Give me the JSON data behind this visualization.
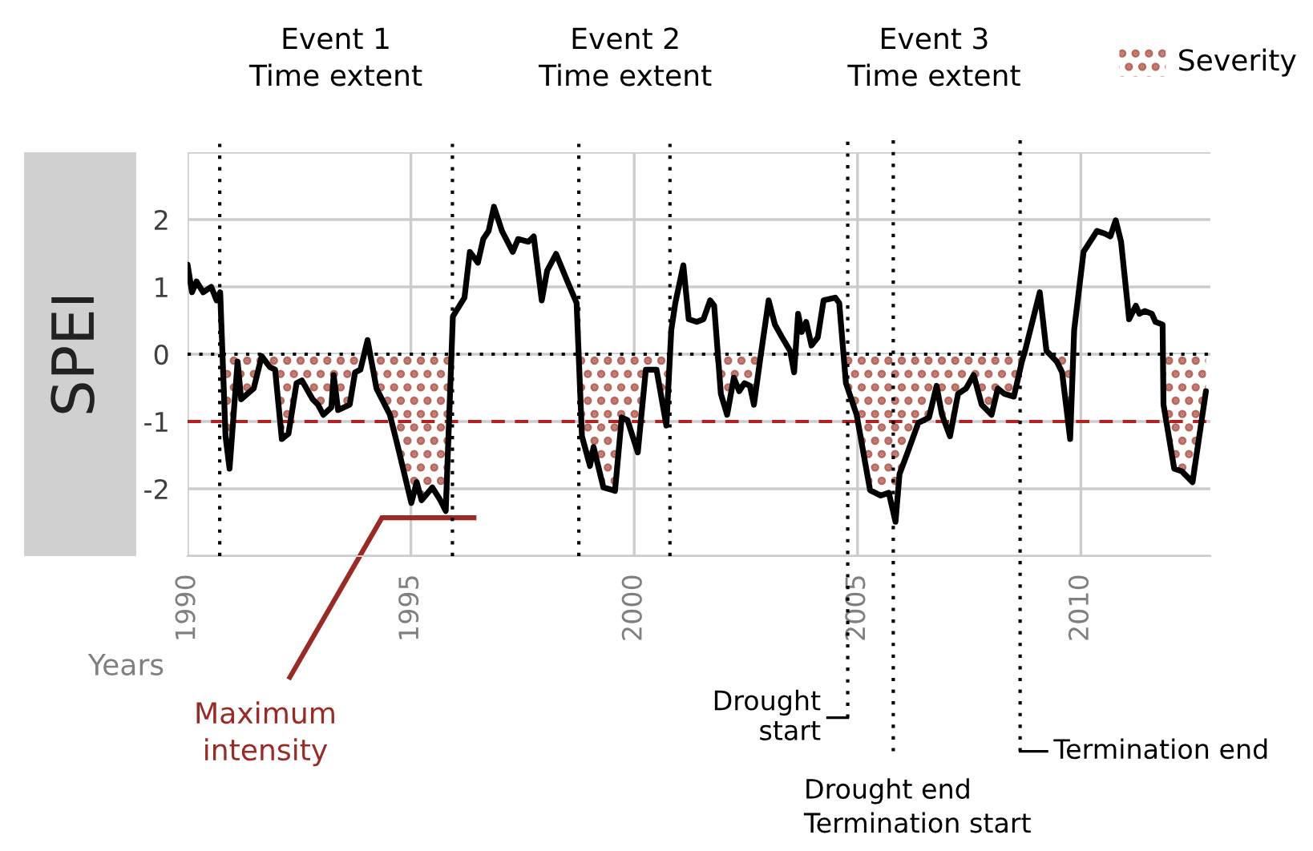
{
  "chart_data": {
    "type": "line",
    "xlabel": "Years",
    "ylabel": "SPEI",
    "x": [
      1990.0,
      1990.1,
      1990.2,
      1990.35,
      1990.53,
      1990.65,
      1990.73,
      1990.85,
      1990.94,
      1991.12,
      1991.2,
      1991.48,
      1991.66,
      1991.84,
      1991.96,
      1992.11,
      1992.26,
      1992.44,
      1992.56,
      1992.8,
      1992.92,
      1993.04,
      1993.22,
      1993.27,
      1993.37,
      1993.63,
      1993.75,
      1993.87,
      1994.03,
      1994.23,
      1994.53,
      1994.71,
      1995.01,
      1995.13,
      1995.24,
      1995.48,
      1995.66,
      1995.78,
      1995.94,
      1996.2,
      1996.32,
      1996.5,
      1996.62,
      1996.74,
      1996.86,
      1997.04,
      1997.28,
      1997.4,
      1997.63,
      1997.75,
      1997.93,
      1998.05,
      1998.25,
      1998.53,
      1998.71,
      1998.83,
      1999.01,
      1999.09,
      1999.31,
      1999.57,
      1999.72,
      1999.85,
      2000.08,
      2000.26,
      2000.5,
      2000.72,
      2000.83,
      2000.92,
      2001.1,
      2001.22,
      2001.4,
      2001.55,
      2001.7,
      2001.79,
      2001.94,
      2002.08,
      2002.23,
      2002.35,
      2002.47,
      2002.59,
      2002.68,
      2002.83,
      2003.01,
      2003.15,
      2003.31,
      2003.49,
      2003.58,
      2003.67,
      2003.75,
      2003.85,
      2003.97,
      2004.11,
      2004.24,
      2004.5,
      2004.59,
      2004.74,
      2004.98,
      2005.28,
      2005.52,
      2005.7,
      2005.85,
      2005.94,
      2006.12,
      2006.36,
      2006.6,
      2006.77,
      2006.89,
      2007.07,
      2007.25,
      2007.43,
      2007.6,
      2007.78,
      2008.0,
      2008.14,
      2008.29,
      2008.5,
      2008.68,
      2008.75,
      2009.08,
      2009.23,
      2009.46,
      2009.58,
      2009.76,
      2009.85,
      2010.06,
      2010.36,
      2010.54,
      2010.66,
      2010.78,
      2010.9,
      2011.08,
      2011.23,
      2011.31,
      2011.43,
      2011.59,
      2011.67,
      2011.83,
      2011.85,
      2012.09,
      2012.26,
      2012.5,
      2012.8
    ],
    "series": [
      {
        "name": "Severity",
        "type": "area",
        "color": "#b86a5e",
        "values": [
          0,
          0,
          0,
          0,
          0,
          0,
          0,
          -1.22,
          -1.7,
          -0.11,
          -0.67,
          -0.51,
          -0.03,
          -0.19,
          -0.23,
          -1.26,
          -1.18,
          -0.43,
          -0.39,
          -0.67,
          -0.75,
          -0.9,
          -0.79,
          -0.31,
          -0.83,
          -0.75,
          -0.27,
          -0.23,
          0,
          -0.51,
          -0.9,
          -1.38,
          -2.21,
          -1.9,
          -2.17,
          -1.98,
          -2.17,
          -2.33,
          0,
          0,
          0,
          0,
          0,
          0,
          0,
          0,
          0,
          0,
          0,
          0,
          0,
          0,
          0,
          0,
          0,
          -1.22,
          -1.66,
          -1.38,
          -1.98,
          -2.03,
          -0.94,
          -0.98,
          -1.46,
          -0.23,
          -0.23,
          -1.06,
          0,
          0,
          0,
          0,
          0,
          0,
          0,
          0,
          -0.59,
          -0.9,
          -0.35,
          -0.55,
          -0.43,
          -0.47,
          -0.75,
          -0.03,
          0,
          0,
          0,
          0,
          -0.27,
          0,
          0,
          0,
          0,
          0,
          0,
          0,
          0,
          -0.43,
          -0.9,
          -2.02,
          -2.1,
          -2.06,
          -2.49,
          -1.78,
          -1.46,
          -1.02,
          -0.94,
          -0.47,
          -0.9,
          -1.22,
          -0.59,
          -0.51,
          -0.31,
          -0.75,
          -0.9,
          -0.51,
          -0.59,
          -0.63,
          -0.11,
          0,
          0,
          0,
          -0.11,
          -0.27,
          -1.26,
          0,
          0,
          0,
          0,
          0,
          0,
          0,
          0,
          0,
          0,
          0,
          0,
          0,
          0,
          -0.75,
          -1.7,
          -1.74,
          -1.9,
          -0.55
        ]
      },
      {
        "color": "#000000",
        "values": [
          1.33,
          0.92,
          1.08,
          0.92,
          1.0,
          0.8,
          0.92,
          -1.22,
          -1.7,
          -0.11,
          -0.67,
          -0.51,
          -0.03,
          -0.19,
          -0.23,
          -1.26,
          -1.18,
          -0.43,
          -0.39,
          -0.67,
          -0.75,
          -0.9,
          -0.79,
          -0.31,
          -0.83,
          -0.75,
          -0.27,
          -0.23,
          0.21,
          -0.51,
          -0.9,
          -1.38,
          -2.21,
          -1.9,
          -2.17,
          -1.98,
          -2.17,
          -2.33,
          0.56,
          0.84,
          1.52,
          1.36,
          1.71,
          1.83,
          2.19,
          1.83,
          1.52,
          1.71,
          1.67,
          1.75,
          0.8,
          1.24,
          1.49,
          1.04,
          0.76,
          -1.22,
          -1.66,
          -1.38,
          -1.98,
          -2.03,
          -0.94,
          -0.98,
          -1.46,
          -0.23,
          -0.23,
          -1.06,
          0.36,
          0.76,
          1.32,
          0.52,
          0.48,
          0.52,
          0.8,
          0.72,
          -0.59,
          -0.9,
          -0.35,
          -0.55,
          -0.43,
          -0.47,
          -0.75,
          -0.03,
          0.8,
          0.44,
          0.25,
          0.05,
          -0.27,
          0.6,
          0.33,
          0.48,
          0.13,
          0.25,
          0.8,
          0.84,
          0.76,
          -0.43,
          -0.9,
          -2.02,
          -2.1,
          -2.06,
          -2.49,
          -1.78,
          -1.46,
          -1.02,
          -0.94,
          -0.47,
          -0.9,
          -1.22,
          -0.59,
          -0.51,
          -0.31,
          -0.75,
          -0.9,
          -0.51,
          -0.59,
          -0.63,
          -0.11,
          0.05,
          0.92,
          0.05,
          -0.11,
          -0.27,
          -1.26,
          0.36,
          1.52,
          1.83,
          1.79,
          1.75,
          1.99,
          1.67,
          0.52,
          0.72,
          0.6,
          0.64,
          0.6,
          0.48,
          0.44,
          -0.75,
          -1.7,
          -1.74,
          -1.9,
          -0.55
        ]
      }
    ],
    "xlim": [
      1990,
      2012.9
    ],
    "ylim": [
      -3,
      3
    ],
    "xticks": [
      1990,
      1995,
      2000,
      2005,
      2010
    ],
    "yticks": [
      {
        "value": -3,
        "label": null
      },
      -2,
      -1,
      0,
      1,
      2,
      {
        "value": 3,
        "label": null
      }
    ],
    "grid": true,
    "legend": "top right",
    "ref_lines": [
      {
        "axis": "x",
        "value": 1990.72,
        "color": "#000000",
        "line_style": "dotted"
      },
      {
        "axis": "x",
        "value": 1995.93,
        "color": "#000000",
        "line_style": "dotted"
      },
      {
        "axis": "x",
        "value": 1998.76,
        "color": "#000000",
        "line_style": "dotted"
      },
      {
        "axis": "x",
        "value": 2000.8,
        "color": "#000000",
        "line_style": "dotted"
      },
      {
        "axis": "y",
        "value": 0,
        "color": "#000000",
        "line_style": "dotted"
      },
      {
        "axis": "y",
        "value": -1,
        "color": "#b22222",
        "line_style": "dashed"
      },
      {
        "axis": "x",
        "value": 2004.78,
        "color": "#000000",
        "line_style": "dotted",
        "label": "Drought\nstart"
      },
      {
        "axis": "x",
        "value": 2005.8,
        "color": "#000000",
        "line_style": "dotted",
        "label": "Drought end\nTermination start"
      },
      {
        "axis": "x",
        "value": 2008.64,
        "color": "#000000",
        "line_style": "dotted",
        "label": "Termination end"
      }
    ],
    "annotations": [
      "Event 1\nTime extent",
      "Event 2\nTime extent",
      "Event 3\nTime extent",
      "Maximum\nintensity"
    ]
  }
}
